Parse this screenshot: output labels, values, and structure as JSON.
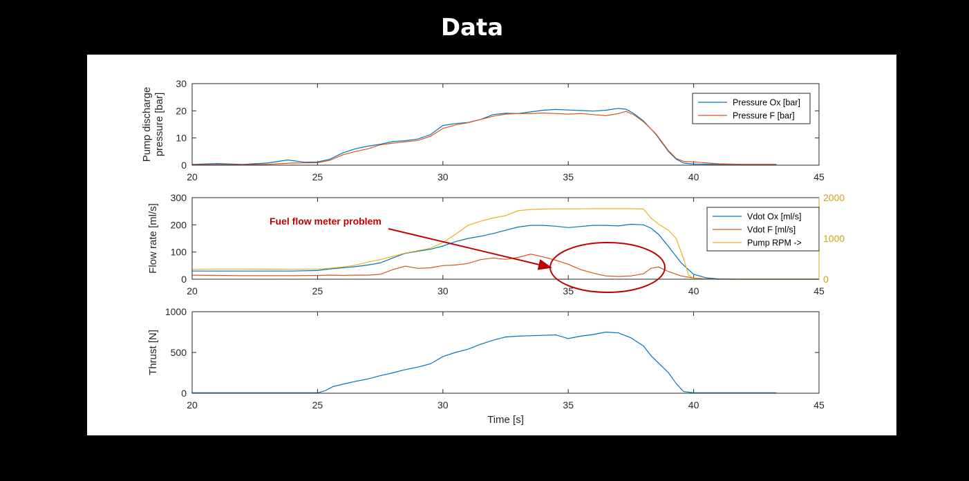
{
  "slide_title": "Data",
  "colors": {
    "ox": "#0072bd",
    "fuel": "#d95319",
    "rpm": "#edb120",
    "annotation": "#c00000"
  },
  "annotation_text": "Fuel flow meter problem",
  "chart_data": [
    {
      "type": "line",
      "ylabel": [
        "Pump discharge",
        "pressure [bar]"
      ],
      "xlabel": "",
      "xlim": [
        20,
        45
      ],
      "ylim": [
        0,
        30
      ],
      "xticks": [
        20,
        25,
        30,
        35,
        40,
        45
      ],
      "yticks": [
        0,
        10,
        20,
        30
      ],
      "legend_position": "top-right",
      "series": [
        {
          "name": "Pressure Ox [bar]",
          "color": "#0072bd",
          "x": [
            20,
            21,
            22,
            23,
            23.8,
            24.5,
            25,
            25.5,
            26,
            26.5,
            27,
            27.5,
            28,
            28.5,
            29,
            29.5,
            30,
            30.5,
            31,
            31.5,
            32,
            32.5,
            33,
            33.5,
            34,
            34.5,
            35,
            35.5,
            36,
            36.5,
            37,
            37.3,
            37.6,
            38,
            38.5,
            39,
            39.3,
            39.6,
            40,
            41,
            42,
            43,
            43.3
          ],
          "y": [
            0.3,
            0.6,
            0.3,
            0.8,
            1.9,
            1.1,
            1.2,
            2.2,
            4.5,
            6.0,
            7.0,
            7.7,
            8.7,
            9.0,
            9.6,
            11.2,
            14.6,
            15.3,
            15.7,
            16.8,
            18.6,
            19.1,
            19.0,
            19.6,
            20.2,
            20.5,
            20.3,
            20.1,
            19.9,
            20.2,
            20.9,
            20.6,
            19.1,
            16.3,
            11.3,
            5.0,
            2.2,
            0.8,
            0.4,
            0.3,
            0.3,
            0.3,
            0.3
          ]
        },
        {
          "name": "Pressure F [bar]",
          "color": "#d95319",
          "x": [
            20,
            21,
            22,
            23,
            24,
            25,
            25.5,
            26,
            26.5,
            27,
            27.5,
            28,
            28.5,
            29,
            29.5,
            30,
            30.5,
            31,
            31.5,
            32,
            32.5,
            33,
            33.5,
            34,
            34.5,
            35,
            35.5,
            36,
            36.5,
            37,
            37.3,
            37.6,
            38,
            38.5,
            39,
            39.3,
            39.6,
            40,
            41,
            42,
            43,
            43.3
          ],
          "y": [
            0.2,
            0.2,
            0.2,
            0.3,
            0.8,
            0.9,
            1.8,
            3.8,
            5.0,
            6.0,
            7.5,
            8.1,
            8.6,
            9.1,
            10.6,
            13.5,
            14.8,
            15.6,
            16.8,
            18.0,
            18.8,
            19.0,
            19.0,
            19.2,
            19.0,
            18.8,
            19.0,
            18.6,
            18.2,
            19.0,
            19.8,
            18.6,
            16.0,
            11.5,
            5.3,
            2.5,
            1.4,
            1.2,
            0.5,
            0.3,
            0.3,
            0.3
          ]
        }
      ]
    },
    {
      "type": "line",
      "ylabel": [
        "Flow rate [ml/s]"
      ],
      "y2label": "",
      "xlabel": "",
      "xlim": [
        20,
        45
      ],
      "ylim": [
        0,
        300
      ],
      "y2lim": [
        0,
        2000
      ],
      "xticks": [
        20,
        25,
        30,
        35,
        40,
        45
      ],
      "yticks": [
        0,
        100,
        200,
        300
      ],
      "y2ticks": [
        0,
        1000,
        2000
      ],
      "legend_position": "top-right",
      "series": [
        {
          "name": "Vdot Ox [ml/s]",
          "color": "#0072bd",
          "axis": "left",
          "x": [
            20,
            21,
            22,
            23,
            24,
            25,
            25.5,
            26,
            26.5,
            27,
            27.5,
            28,
            28.5,
            29,
            29.5,
            30,
            30.5,
            31,
            31.5,
            32,
            32.5,
            33,
            33.5,
            34,
            34.5,
            35,
            35.5,
            36,
            36.5,
            37,
            37.5,
            38,
            38.3,
            38.6,
            39,
            39.5,
            40,
            40.5,
            41,
            42,
            43,
            44,
            45
          ],
          "y": [
            30,
            30,
            30,
            30,
            30,
            32,
            38,
            42,
            46,
            52,
            60,
            78,
            95,
            103,
            110,
            122,
            138,
            150,
            158,
            168,
            180,
            192,
            198,
            198,
            195,
            190,
            194,
            198,
            198,
            196,
            202,
            200,
            188,
            165,
            120,
            60,
            18,
            5,
            1,
            0,
            0,
            0,
            0
          ]
        },
        {
          "name": "Vdot F [ml/s]",
          "color": "#d95319",
          "axis": "left",
          "x": [
            20,
            21,
            22,
            23,
            24,
            25,
            25.5,
            26,
            26.5,
            27,
            27.5,
            28,
            28.5,
            29,
            29.5,
            30,
            30.5,
            31,
            31.5,
            32,
            32.5,
            33,
            33.5,
            34,
            34.5,
            35,
            35.5,
            36,
            36.5,
            37,
            37.5,
            38,
            38.3,
            38.6,
            39,
            39.5,
            40,
            40.5,
            41,
            42,
            43,
            44,
            45
          ],
          "y": [
            15,
            14,
            13,
            13,
            13,
            14,
            15,
            14,
            15,
            15,
            18,
            35,
            48,
            40,
            42,
            50,
            52,
            58,
            72,
            78,
            73,
            80,
            92,
            82,
            70,
            55,
            35,
            22,
            12,
            10,
            12,
            20,
            40,
            45,
            28,
            12,
            4,
            1,
            0,
            0,
            0,
            0,
            0
          ]
        },
        {
          "name": "Pump RPM ->",
          "color": "#edb120",
          "axis": "right",
          "x": [
            20,
            21,
            22,
            23,
            24,
            25,
            25.5,
            26,
            26.5,
            27,
            27.5,
            28,
            28.5,
            29,
            29.5,
            30,
            30.5,
            31,
            31.5,
            32,
            32.5,
            33,
            33.5,
            34,
            34.5,
            35,
            35.5,
            36,
            36.5,
            37,
            37.5,
            38,
            38.3,
            38.6,
            39,
            39.3,
            39.6,
            39.8,
            40,
            40.3,
            41,
            42,
            43,
            44,
            45
          ],
          "y": [
            240,
            250,
            250,
            245,
            240,
            250,
            270,
            300,
            340,
            420,
            480,
            560,
            640,
            700,
            760,
            900,
            1100,
            1320,
            1420,
            1500,
            1560,
            1680,
            1710,
            1720,
            1725,
            1725,
            1725,
            1730,
            1730,
            1730,
            1730,
            1720,
            1500,
            1350,
            1200,
            1000,
            500,
            100,
            20,
            5,
            0,
            0,
            0,
            0,
            0
          ]
        }
      ]
    },
    {
      "type": "line",
      "ylabel": [
        "Thrust [N]"
      ],
      "xlabel": "Time [s]",
      "xlim": [
        20,
        45
      ],
      "ylim": [
        0,
        1000
      ],
      "xticks": [
        20,
        25,
        30,
        35,
        40,
        45
      ],
      "yticks": [
        0,
        500,
        1000
      ],
      "series": [
        {
          "color": "#0072bd",
          "x": [
            20,
            22,
            24,
            25,
            25.3,
            25.6,
            26,
            26.5,
            27,
            27.5,
            28,
            28.5,
            29,
            29.5,
            30,
            30.5,
            31,
            31.5,
            32,
            32.5,
            33,
            33.5,
            34,
            34.5,
            35,
            35.5,
            36,
            36.5,
            37,
            37.5,
            38,
            38.3,
            38.6,
            39,
            39.3,
            39.6,
            40,
            41,
            42,
            43,
            43.3
          ],
          "y": [
            5,
            5,
            5,
            5,
            30,
            80,
            110,
            145,
            175,
            215,
            250,
            290,
            320,
            360,
            450,
            500,
            540,
            600,
            650,
            690,
            700,
            705,
            710,
            715,
            670,
            700,
            720,
            750,
            740,
            680,
            580,
            460,
            370,
            250,
            120,
            20,
            5,
            5,
            5,
            5,
            5
          ]
        }
      ]
    }
  ]
}
